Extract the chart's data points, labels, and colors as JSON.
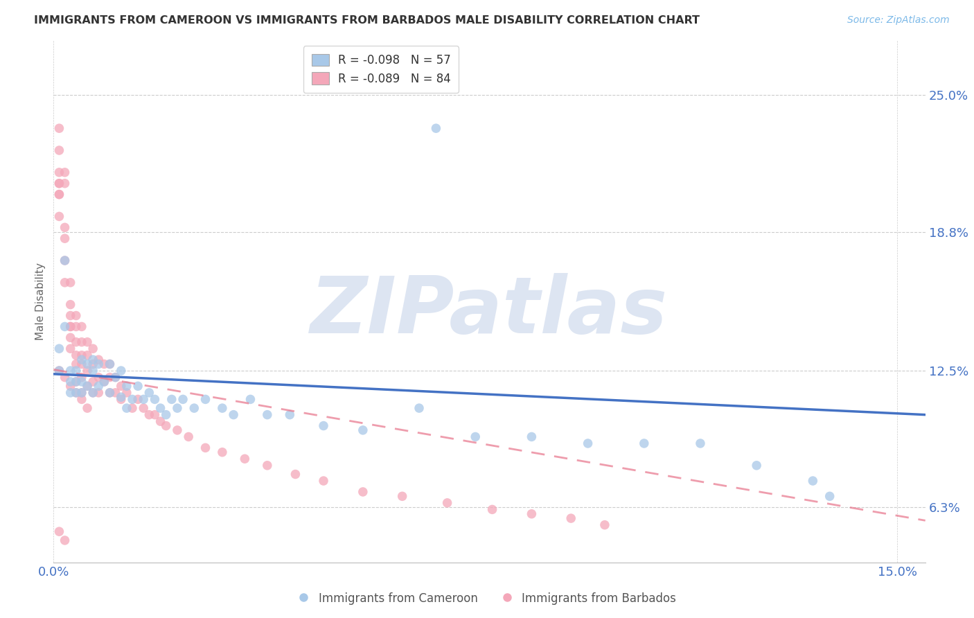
{
  "title": "IMMIGRANTS FROM CAMEROON VS IMMIGRANTS FROM BARBADOS MALE DISABILITY CORRELATION CHART",
  "source": "Source: ZipAtlas.com",
  "ylabel": "Male Disability",
  "xlim": [
    0.0,
    0.155
  ],
  "ylim": [
    0.038,
    0.275
  ],
  "yticks": [
    0.063,
    0.125,
    0.188,
    0.25
  ],
  "ytick_labels": [
    "6.3%",
    "12.5%",
    "18.8%",
    "25.0%"
  ],
  "xticks": [
    0.0,
    0.15
  ],
  "xtick_labels": [
    "0.0%",
    "15.0%"
  ],
  "cameroon_color": "#a8c8e8",
  "barbados_color": "#f4a7b9",
  "cameroon_line_color": "#4472c4",
  "barbados_line_color": "#e8748a",
  "watermark": "ZIPatlas",
  "watermark_color": "#dde5f2",
  "cameroon_N": 57,
  "barbados_N": 84,
  "cameroon_R": -0.098,
  "barbados_R": -0.089,
  "grid_color": "#cccccc",
  "background_color": "#ffffff",
  "tick_color": "#4472c4",
  "title_color": "#333333",
  "source_color": "#7cb9e8",
  "ylabel_color": "#666666",
  "cam_trend_x0": 0.0,
  "cam_trend_y0": 0.1235,
  "cam_trend_x1": 0.155,
  "cam_trend_y1": 0.105,
  "barb_trend_x0": 0.0,
  "barb_trend_y0": 0.1255,
  "barb_trend_x1": 0.155,
  "barb_trend_y1": 0.057,
  "cameroon_x": [
    0.001,
    0.001,
    0.002,
    0.002,
    0.003,
    0.003,
    0.003,
    0.004,
    0.004,
    0.004,
    0.005,
    0.005,
    0.005,
    0.006,
    0.006,
    0.007,
    0.007,
    0.007,
    0.008,
    0.008,
    0.009,
    0.01,
    0.01,
    0.011,
    0.012,
    0.012,
    0.013,
    0.013,
    0.014,
    0.015,
    0.016,
    0.017,
    0.018,
    0.019,
    0.02,
    0.021,
    0.022,
    0.023,
    0.025,
    0.027,
    0.03,
    0.032,
    0.035,
    0.038,
    0.042,
    0.048,
    0.055,
    0.065,
    0.075,
    0.085,
    0.095,
    0.105,
    0.115,
    0.125,
    0.135,
    0.138,
    0.068
  ],
  "cameroon_y": [
    0.135,
    0.125,
    0.145,
    0.175,
    0.125,
    0.12,
    0.115,
    0.125,
    0.12,
    0.115,
    0.13,
    0.12,
    0.115,
    0.128,
    0.118,
    0.13,
    0.125,
    0.115,
    0.128,
    0.118,
    0.12,
    0.128,
    0.115,
    0.122,
    0.125,
    0.113,
    0.118,
    0.108,
    0.112,
    0.118,
    0.112,
    0.115,
    0.112,
    0.108,
    0.105,
    0.112,
    0.108,
    0.112,
    0.108,
    0.112,
    0.108,
    0.105,
    0.112,
    0.105,
    0.105,
    0.1,
    0.098,
    0.108,
    0.095,
    0.095,
    0.092,
    0.092,
    0.092,
    0.082,
    0.075,
    0.068,
    0.235
  ],
  "barbados_x": [
    0.001,
    0.001,
    0.001,
    0.001,
    0.001,
    0.001,
    0.001,
    0.001,
    0.002,
    0.002,
    0.002,
    0.002,
    0.002,
    0.002,
    0.003,
    0.003,
    0.003,
    0.003,
    0.003,
    0.003,
    0.003,
    0.004,
    0.004,
    0.004,
    0.004,
    0.004,
    0.004,
    0.005,
    0.005,
    0.005,
    0.005,
    0.005,
    0.005,
    0.006,
    0.006,
    0.006,
    0.006,
    0.007,
    0.007,
    0.007,
    0.007,
    0.008,
    0.008,
    0.008,
    0.009,
    0.009,
    0.01,
    0.01,
    0.01,
    0.011,
    0.011,
    0.012,
    0.012,
    0.013,
    0.014,
    0.015,
    0.016,
    0.017,
    0.018,
    0.019,
    0.02,
    0.022,
    0.024,
    0.027,
    0.03,
    0.034,
    0.038,
    0.043,
    0.048,
    0.055,
    0.062,
    0.07,
    0.078,
    0.085,
    0.092,
    0.098,
    0.001,
    0.002,
    0.003,
    0.004,
    0.005,
    0.006,
    0.001,
    0.002
  ],
  "barbados_y": [
    0.235,
    0.225,
    0.215,
    0.21,
    0.21,
    0.205,
    0.205,
    0.195,
    0.215,
    0.21,
    0.19,
    0.185,
    0.175,
    0.165,
    0.165,
    0.155,
    0.15,
    0.145,
    0.145,
    0.14,
    0.135,
    0.15,
    0.145,
    0.138,
    0.132,
    0.128,
    0.12,
    0.145,
    0.138,
    0.132,
    0.128,
    0.122,
    0.115,
    0.138,
    0.132,
    0.125,
    0.118,
    0.135,
    0.128,
    0.12,
    0.115,
    0.13,
    0.122,
    0.115,
    0.128,
    0.12,
    0.128,
    0.122,
    0.115,
    0.122,
    0.115,
    0.118,
    0.112,
    0.115,
    0.108,
    0.112,
    0.108,
    0.105,
    0.105,
    0.102,
    0.1,
    0.098,
    0.095,
    0.09,
    0.088,
    0.085,
    0.082,
    0.078,
    0.075,
    0.07,
    0.068,
    0.065,
    0.062,
    0.06,
    0.058,
    0.055,
    0.125,
    0.122,
    0.118,
    0.115,
    0.112,
    0.108,
    0.052,
    0.048
  ]
}
